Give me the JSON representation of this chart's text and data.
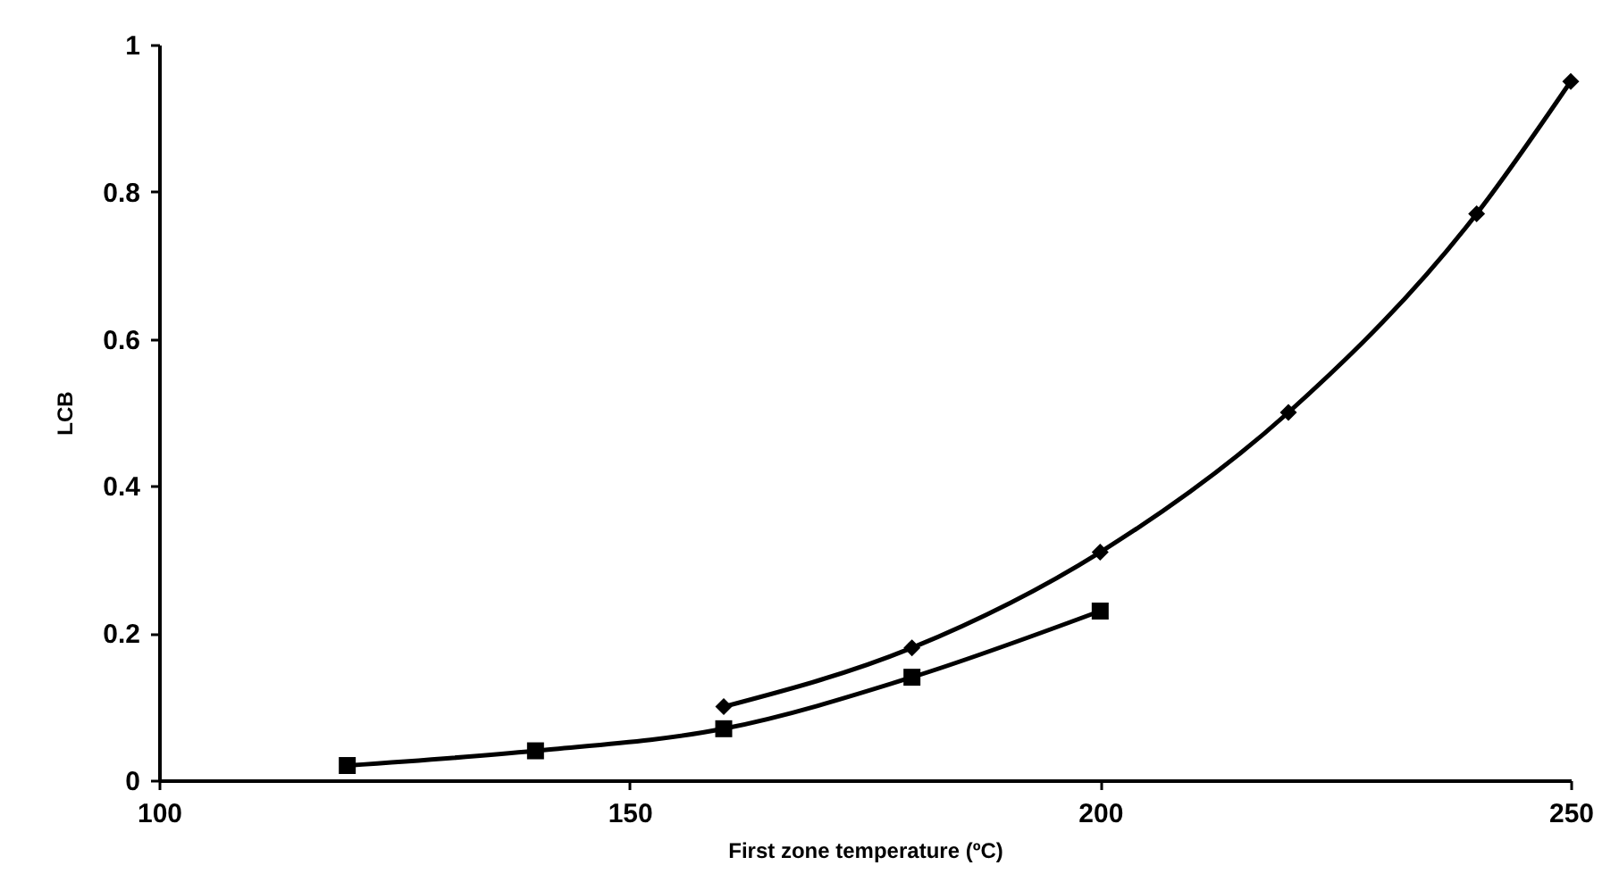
{
  "chart_data": {
    "type": "line",
    "xlabel": "First zone temperature (ºC)",
    "ylabel": "LCB",
    "xlim": [
      100,
      250
    ],
    "xticks": [
      100,
      150,
      200,
      250
    ],
    "ylim": [
      0,
      1
    ],
    "yticks": [
      0,
      0.2,
      0.4,
      0.6,
      0.8,
      1
    ],
    "grid": false,
    "series": [
      {
        "color": "#000000",
        "marker": "diamond",
        "x": [
          160,
          180,
          200,
          220,
          240,
          250
        ],
        "values": [
          0.1,
          0.18,
          0.31,
          0.5,
          0.77,
          0.95
        ]
      },
      {
        "color": "#000000",
        "marker": "square",
        "x": [
          120,
          140,
          160,
          180,
          200
        ],
        "values": [
          0.02,
          0.04,
          0.07,
          0.14,
          0.23
        ]
      }
    ]
  }
}
